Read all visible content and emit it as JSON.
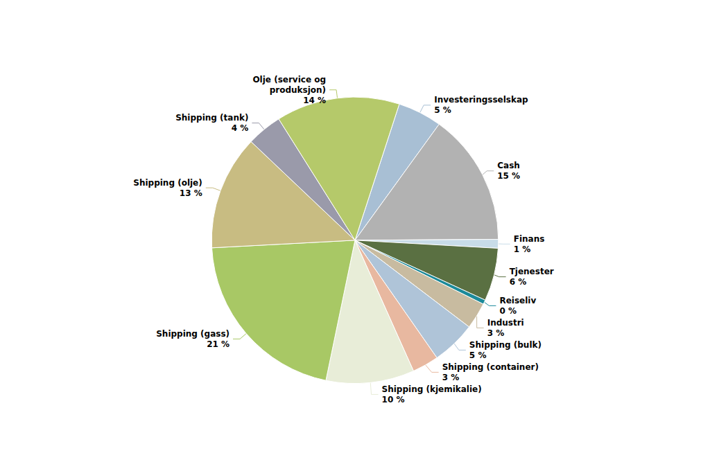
{
  "chart_data": {
    "type": "pie",
    "categories": [
      "Investeringsselskap",
      "Cash",
      "Finans",
      "Tjenester",
      "Reiseliv",
      "Industri",
      "Shipping (bulk)",
      "Shipping (container)",
      "Shipping (kjemikalie)",
      "Shipping (gass)",
      "Shipping (olje)",
      "Shipping (tank)",
      "Olje (service og\nproduksjon)"
    ],
    "values": [
      5,
      15,
      1,
      6,
      0.5,
      3,
      5,
      3,
      10,
      21,
      13,
      4,
      14
    ],
    "value_labels": [
      "5 %",
      "15 %",
      "1 %",
      "6 %",
      "0 %",
      "3 %",
      "5 %",
      "3 %",
      "10 %",
      "21 %",
      "13 %",
      "4 %",
      "14 %"
    ],
    "colors": [
      "#a8bfd4",
      "#b2b2b2",
      "#c8dce8",
      "#5a7042",
      "#1c8a9a",
      "#c8bba0",
      "#afc4d8",
      "#e8b8a0",
      "#e8edd8",
      "#a8c865",
      "#c8bc82",
      "#9a9aaa",
      "#b5c96a"
    ],
    "legend": false,
    "data_labels": true
  }
}
